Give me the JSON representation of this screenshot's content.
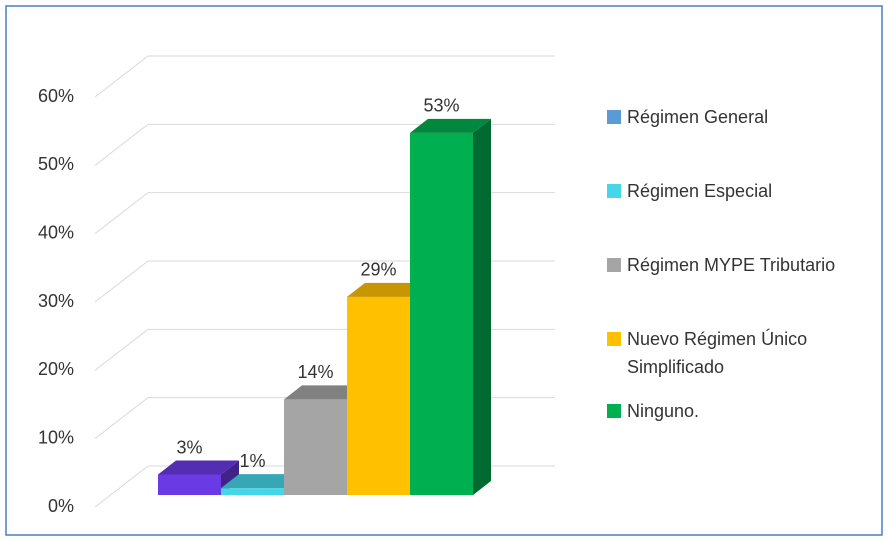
{
  "chart_data": {
    "type": "bar3d",
    "series": [
      {
        "name": "Régimen General",
        "color": "#5b9bd5",
        "bar_color": "#6a3be4",
        "values": [
          3
        ],
        "value_labels": [
          "3%"
        ]
      },
      {
        "name": "Régimen Especial",
        "color": "#45d6e8",
        "values": [
          1
        ],
        "value_labels": [
          "1%"
        ]
      },
      {
        "name": "Régimen MYPE Tributario",
        "color": "#a5a5a5",
        "values": [
          14
        ],
        "value_labels": [
          "14%"
        ]
      },
      {
        "name": "Nuevo Régimen Único Simplificado",
        "color": "#ffc000",
        "values": [
          29
        ],
        "value_labels": [
          "29%"
        ]
      },
      {
        "name": "Ninguno.",
        "color": "#00b050",
        "values": [
          53
        ],
        "value_labels": [
          "53%"
        ]
      }
    ],
    "ylim": [
      0,
      60
    ],
    "yticks": [
      {
        "value": 0,
        "label": "0%"
      },
      {
        "value": 10,
        "label": "10%"
      },
      {
        "value": 20,
        "label": "20%"
      },
      {
        "value": 30,
        "label": "30%"
      },
      {
        "value": 40,
        "label": "40%"
      },
      {
        "value": 50,
        "label": "50%"
      },
      {
        "value": 60,
        "label": "60%"
      }
    ],
    "grid": true,
    "legend": "right"
  }
}
